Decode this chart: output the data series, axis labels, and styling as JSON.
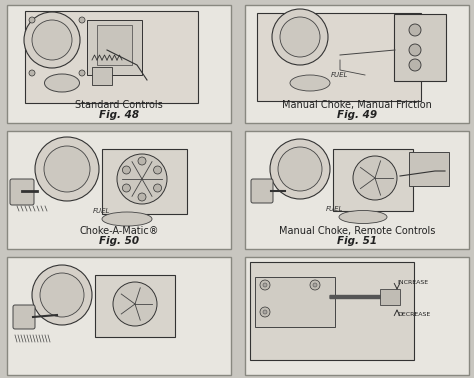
{
  "background_color": "#d0cec8",
  "page_bg": "#c8c6c0",
  "panels": [
    {
      "row": 0,
      "col": 0,
      "label": "Standard Controls",
      "fig": "Fig. 48"
    },
    {
      "row": 0,
      "col": 1,
      "label": "Manual Choke, Manual Friction",
      "fig": "Fig. 49"
    },
    {
      "row": 1,
      "col": 0,
      "label": "Choke-A-Matic®",
      "fig": "Fig. 50"
    },
    {
      "row": 1,
      "col": 1,
      "label": "Manual Choke, Remote Controls",
      "fig": "Fig. 51"
    },
    {
      "row": 2,
      "col": 0,
      "label": "",
      "fig": ""
    },
    {
      "row": 2,
      "col": 1,
      "label": "",
      "fig": ""
    }
  ],
  "panel_bg": "#e8e6e0",
  "panel_border": "#888880",
  "text_color": "#222222",
  "label_fontsize": 7.0,
  "fig_fontsize": 7.5,
  "increase_text": "INCREASE",
  "decrease_text": "DECREASE"
}
